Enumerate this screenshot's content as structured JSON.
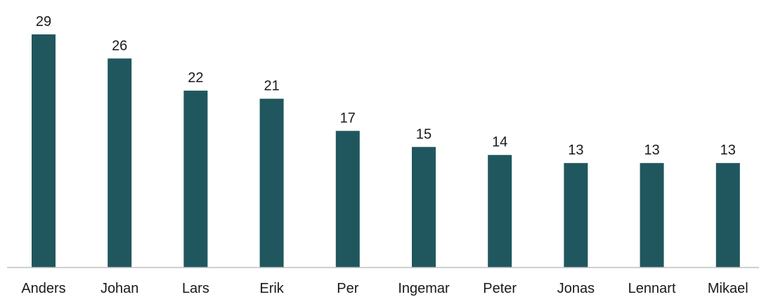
{
  "chart_data": {
    "type": "bar",
    "categories": [
      "Anders",
      "Johan",
      "Lars",
      "Erik",
      "Per",
      "Ingemar",
      "Peter",
      "Jonas",
      "Lennart",
      "Mikael"
    ],
    "values": [
      29,
      26,
      22,
      21,
      17,
      15,
      14,
      13,
      13,
      13
    ],
    "data_labels": [
      "29",
      "26",
      "22",
      "21",
      "17",
      "15",
      "14",
      "13",
      "13",
      "13"
    ],
    "title": "",
    "xlabel": "",
    "ylabel": "",
    "ylim": [
      0,
      29
    ],
    "grid": false,
    "legend": "none",
    "bar_color": "#20575E",
    "axis_color": "#BFBFBF"
  }
}
